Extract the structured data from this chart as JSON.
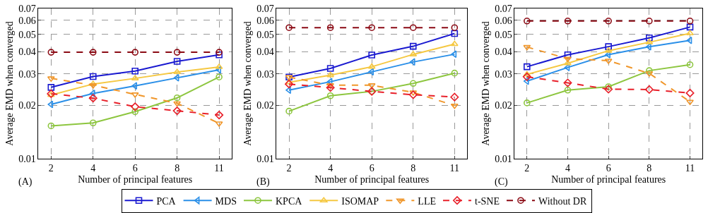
{
  "chart_data": [
    {
      "type": "line",
      "xlabel": "Number of principal features",
      "ylabel": "Average EMD when converged",
      "annotations": [
        "(A)"
      ],
      "categories": [
        "2",
        "4",
        "6",
        "8",
        "11"
      ],
      "log": "y",
      "ylim": [
        0.01,
        0.07
      ],
      "yticks": [
        0.01,
        0.02,
        0.03,
        0.04,
        0.05,
        0.06,
        0.07
      ],
      "grid": true,
      "legend": "bottom",
      "series": [
        {
          "name": "PCA",
          "color": "#1a1ad0",
          "marker": "square",
          "line_style": "solid",
          "values": [
            0.0252,
            0.029,
            0.0311,
            0.0353,
            0.0384
          ]
        },
        {
          "name": "MDS",
          "color": "#2a8fe8",
          "marker": "triangle-left",
          "line_style": "solid",
          "values": [
            0.0202,
            0.0233,
            0.0257,
            0.0285,
            0.0316
          ]
        },
        {
          "name": "KPCA",
          "color": "#8dc63f",
          "marker": "circle",
          "line_style": "solid",
          "values": [
            0.0153,
            0.0159,
            0.0184,
            0.022,
            0.0288
          ]
        },
        {
          "name": "ISOMAP",
          "color": "#f5c842",
          "marker": "triangle",
          "line_style": "solid",
          "values": [
            0.0228,
            0.0263,
            0.0283,
            0.0307,
            0.0328
          ]
        },
        {
          "name": "LLE",
          "color": "#f0962a",
          "marker": "triangle-down",
          "line_style": "dashed",
          "values": [
            0.0283,
            0.0259,
            0.023,
            0.0205,
            0.0158
          ]
        },
        {
          "name": "t-SNE",
          "color": "#e8202a",
          "marker": "diamond",
          "line_style": "dashed",
          "values": [
            0.0232,
            0.0219,
            0.0196,
            0.0186,
            0.0176
          ]
        },
        {
          "name": "Without DR",
          "color": "#8b0a14",
          "marker": "circle",
          "line_style": "dashed",
          "values": [
            0.0397,
            0.0397,
            0.0397,
            0.0397,
            0.0397
          ]
        }
      ]
    },
    {
      "type": "line",
      "xlabel": "Number of principal features",
      "ylabel": "Average EMD when converged",
      "annotations": [
        "(B)"
      ],
      "categories": [
        "2",
        "4",
        "6",
        "8",
        "11"
      ],
      "log": "y",
      "ylim": [
        0.01,
        0.07
      ],
      "yticks": [
        0.01,
        0.02,
        0.03,
        0.04,
        0.05,
        0.06,
        0.07
      ],
      "grid": true,
      "legend": "bottom",
      "series": [
        {
          "name": "PCA",
          "color": "#1a1ad0",
          "marker": "square",
          "line_style": "solid",
          "values": [
            0.0288,
            0.0322,
            0.0383,
            0.0429,
            0.0506
          ]
        },
        {
          "name": "MDS",
          "color": "#2a8fe8",
          "marker": "triangle-left",
          "line_style": "solid",
          "values": [
            0.0243,
            0.0271,
            0.0308,
            0.035,
            0.0387
          ]
        },
        {
          "name": "KPCA",
          "color": "#8dc63f",
          "marker": "circle",
          "line_style": "solid",
          "values": [
            0.0185,
            0.0226,
            0.0239,
            0.0265,
            0.0303
          ]
        },
        {
          "name": "ISOMAP",
          "color": "#f5c842",
          "marker": "triangle",
          "line_style": "solid",
          "values": [
            0.0269,
            0.0295,
            0.0329,
            0.0386,
            0.0441
          ]
        },
        {
          "name": "LLE",
          "color": "#f0962a",
          "marker": "triangle-down",
          "line_style": "dashed",
          "values": [
            0.0288,
            0.0259,
            0.0259,
            0.0236,
            0.0199
          ]
        },
        {
          "name": "t-SNE",
          "color": "#e8202a",
          "marker": "diamond",
          "line_style": "dashed",
          "values": [
            0.0263,
            0.0251,
            0.0239,
            0.0229,
            0.0222
          ]
        },
        {
          "name": "Without DR",
          "color": "#8b0a14",
          "marker": "circle",
          "line_style": "dashed",
          "values": [
            0.0546,
            0.0546,
            0.0546,
            0.0546,
            0.0546
          ]
        }
      ]
    },
    {
      "type": "line",
      "xlabel": "Number of principal features",
      "ylabel": "Average EMD when converged",
      "annotations": [
        "(C)"
      ],
      "categories": [
        "2",
        "4",
        "6",
        "8",
        "11"
      ],
      "log": "y",
      "ylim": [
        0.01,
        0.07
      ],
      "yticks": [
        0.01,
        0.02,
        0.03,
        0.04,
        0.05,
        0.06,
        0.07
      ],
      "grid": true,
      "legend": "bottom",
      "series": [
        {
          "name": "PCA",
          "color": "#1a1ad0",
          "marker": "square",
          "line_style": "solid",
          "values": [
            0.0329,
            0.0384,
            0.0427,
            0.0478,
            0.055
          ]
        },
        {
          "name": "MDS",
          "color": "#2a8fe8",
          "marker": "triangle-left",
          "line_style": "solid",
          "values": [
            0.0273,
            0.0326,
            0.0385,
            0.0426,
            0.0463
          ]
        },
        {
          "name": "KPCA",
          "color": "#8dc63f",
          "marker": "circle",
          "line_style": "solid",
          "values": [
            0.0206,
            0.0243,
            0.0254,
            0.0313,
            0.0338
          ]
        },
        {
          "name": "ISOMAP",
          "color": "#f5c842",
          "marker": "triangle",
          "line_style": "solid",
          "values": [
            0.0298,
            0.0344,
            0.0405,
            0.0452,
            0.0507
          ]
        },
        {
          "name": "LLE",
          "color": "#f0962a",
          "marker": "triangle-down",
          "line_style": "dashed",
          "values": [
            0.0425,
            0.0365,
            0.0356,
            0.0302,
            0.0209
          ]
        },
        {
          "name": "t-SNE",
          "color": "#e8202a",
          "marker": "diamond",
          "line_style": "dashed",
          "values": [
            0.0289,
            0.0267,
            0.0246,
            0.0245,
            0.0234
          ]
        },
        {
          "name": "Without DR",
          "color": "#8b0a14",
          "marker": "circle",
          "line_style": "dashed",
          "values": [
            0.0595,
            0.0595,
            0.0595,
            0.0595,
            0.0595
          ]
        }
      ]
    }
  ]
}
